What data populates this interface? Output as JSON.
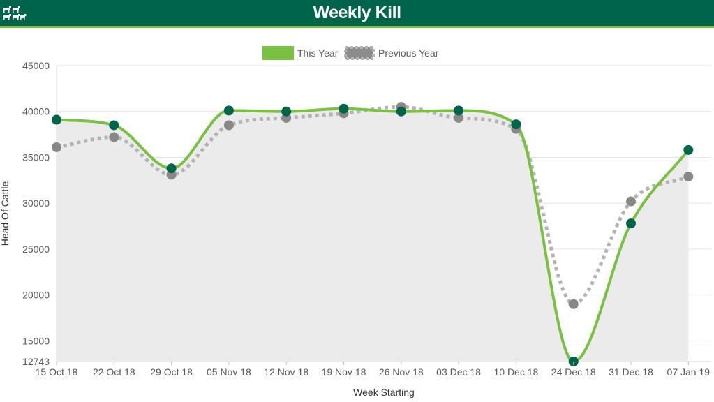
{
  "header": {
    "title": "Weekly Kill",
    "logo_icon": "cattle-herd-icon"
  },
  "colors": {
    "header_bg": "#00644b",
    "header_accent": "#7ac143",
    "this_year": "#7ac143",
    "this_year_point": "#00644b",
    "previous_year": "#b3b3b3",
    "previous_year_point": "#888888",
    "area_fill": "#ebebeb"
  },
  "chart_data": {
    "type": "line",
    "xlabel": "Week Starting",
    "ylabel": "Head Of Cattle",
    "ylim": [
      12743,
      45000
    ],
    "yticks": [
      12743,
      15000,
      20000,
      25000,
      30000,
      35000,
      40000,
      45000
    ],
    "grid": true,
    "legend_position": "top-center",
    "categories": [
      "15 Oct 18",
      "22 Oct 18",
      "29 Oct 18",
      "05 Nov 18",
      "12 Nov 18",
      "19 Nov 18",
      "26 Nov 18",
      "03 Dec 18",
      "10 Dec 18",
      "24 Dec 18",
      "31 Dec 18",
      "07 Jan 19"
    ],
    "series": [
      {
        "name": "This Year",
        "style": "solid",
        "values": [
          39100,
          38500,
          33800,
          40100,
          40000,
          40300,
          40000,
          40100,
          38600,
          12743,
          27800,
          35800
        ]
      },
      {
        "name": "Previous Year",
        "style": "dotted",
        "values": [
          36100,
          37200,
          33100,
          38500,
          39300,
          39800,
          40500,
          39300,
          38100,
          19000,
          30200,
          32900
        ]
      }
    ]
  }
}
